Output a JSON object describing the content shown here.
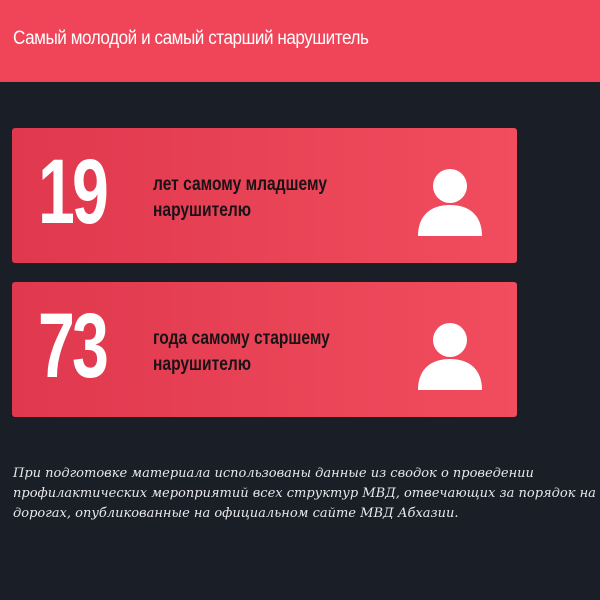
{
  "header": {
    "title": "Самый молодой и самый старший нарушитель"
  },
  "cards": [
    {
      "number": "19",
      "label_lines": [
        "лет самому младшему",
        "нарушителю"
      ],
      "icon": "person-icon"
    },
    {
      "number": "73",
      "label_lines": [
        "года самому старшему",
        "нарушителю"
      ],
      "icon": "person-icon"
    }
  ],
  "footnote": {
    "lines": [
      "При подготовке материала использованы данные из сводок о проведении",
      "профилактических мероприятий всех структур МВД, отвечающих за порядок на",
      "дорогах, опубликованные на официальном сайте МВД Абхазии."
    ]
  },
  "colors": {
    "background": "#1a1e27",
    "accent": "#f04459",
    "card_gradient_start": "#e0384e",
    "card_gradient_end": "#f14d5e",
    "label_text": "#1a1216",
    "white": "#ffffff"
  }
}
